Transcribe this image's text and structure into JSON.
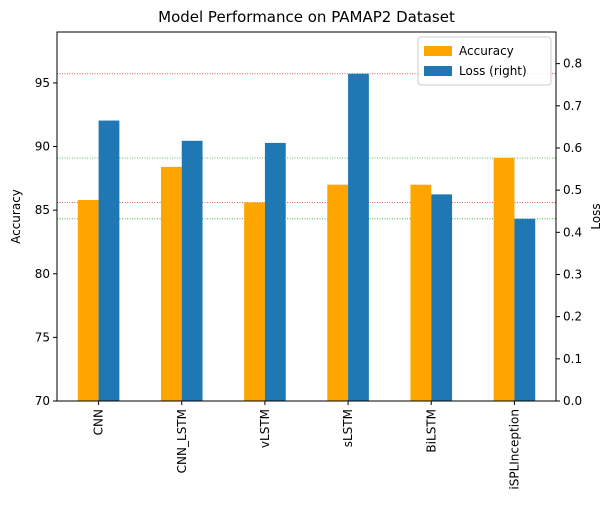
{
  "chart_data": {
    "type": "bar",
    "title": "Model Performance on PAMAP2 Dataset",
    "categories": [
      "CNN",
      "CNN_LSTM",
      "vLSTM",
      "sLSTM",
      "BiLSTM",
      "iSPLInception"
    ],
    "series": [
      {
        "name": "Accuracy",
        "axis": "left",
        "color": "#ffa500",
        "values": [
          85.8,
          88.4,
          85.6,
          87.0,
          87.0,
          89.1
        ]
      },
      {
        "name": "Loss (right)",
        "axis": "right",
        "color": "#1f77b4",
        "values": [
          0.665,
          0.617,
          0.612,
          0.776,
          0.49,
          0.432
        ]
      }
    ],
    "ylabel_left": "Accuracy",
    "ylabel_right": "Loss",
    "ylim_left": [
      70,
      99
    ],
    "ylim_right": [
      0,
      0.875
    ],
    "yticks_left": [
      "70",
      "75",
      "80",
      "85",
      "90",
      "95"
    ],
    "yticks_right": [
      "0.0",
      "0.1",
      "0.2",
      "0.3",
      "0.4",
      "0.5",
      "0.6",
      "0.7",
      "0.8"
    ],
    "reference_lines": [
      {
        "axis": "left",
        "value": 89.1,
        "color": "#2ca02c"
      },
      {
        "axis": "left",
        "value": 85.6,
        "color": "#d62728"
      },
      {
        "axis": "right",
        "value": 0.776,
        "color": "#d62728"
      },
      {
        "axis": "right",
        "value": 0.432,
        "color": "#2ca02c"
      }
    ],
    "legend_position": "top-right",
    "grid": false
  }
}
